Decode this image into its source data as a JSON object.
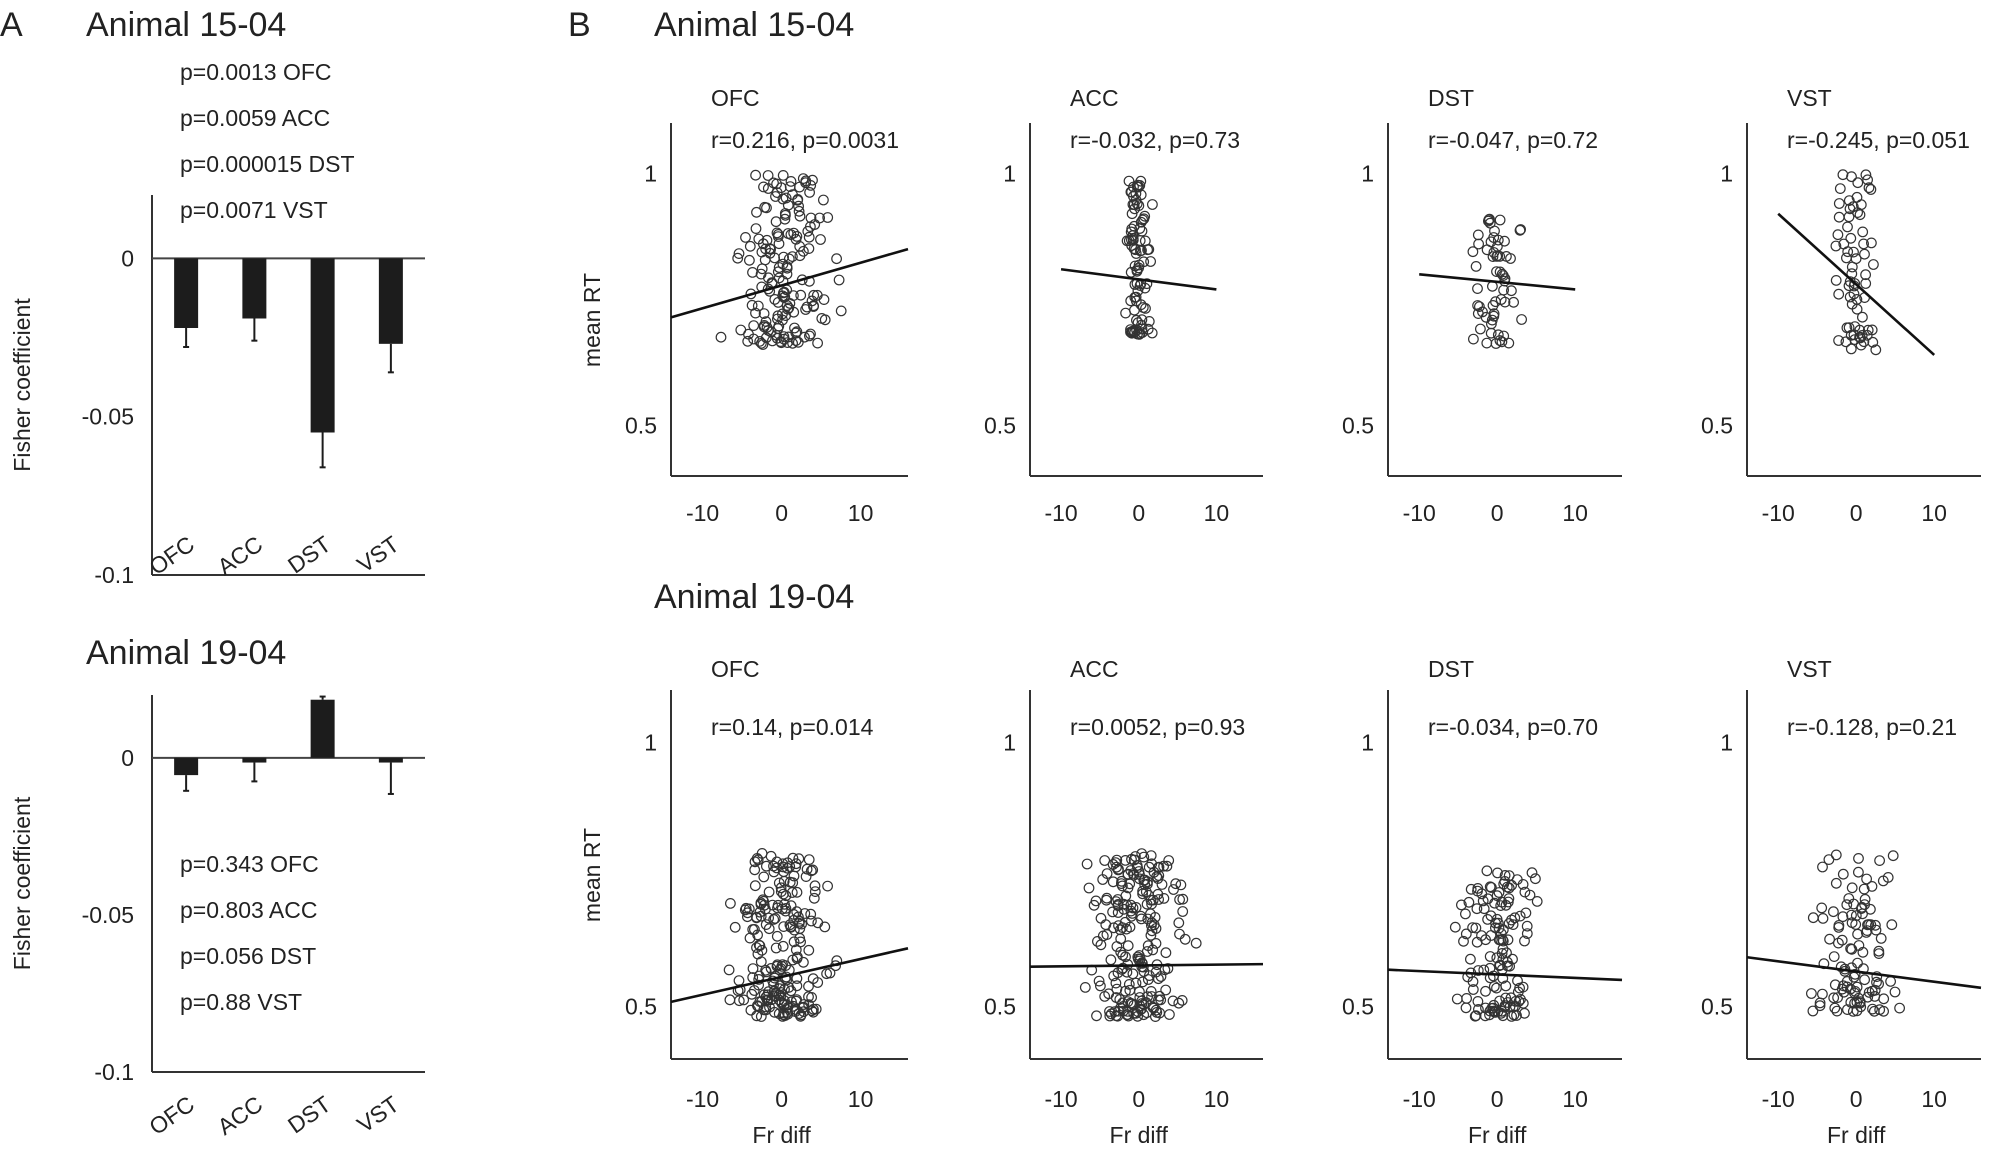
{
  "panel_a_label": "A",
  "panel_b_label": "B",
  "chart_data": [
    {
      "id": "a1",
      "type": "bar",
      "title": "Animal 15-04",
      "ylabel": "Fisher coefficient",
      "categories": [
        "OFC",
        "ACC",
        "DST",
        "VST"
      ],
      "values": [
        -0.022,
        -0.019,
        -0.055,
        -0.027
      ],
      "errors": [
        0.006,
        0.007,
        0.011,
        0.009
      ],
      "ylim": [
        -0.1,
        0.02
      ],
      "yticks": [
        0,
        -0.05,
        -0.1
      ],
      "ytick_labels": [
        "0",
        "-0.05",
        "-0.1"
      ],
      "pvalues": [
        "p=0.0013 OFC",
        "p=0.0059 ACC",
        "p=0.000015  DST",
        "p=0.0071 VST"
      ]
    },
    {
      "id": "a2",
      "type": "bar",
      "title": "Animal 19-04",
      "ylabel": "Fisher coefficient",
      "categories": [
        "OFC",
        "ACC",
        "DST",
        "VST"
      ],
      "values": [
        -0.0055,
        -0.0015,
        0.0185,
        -0.0015
      ],
      "errors": [
        0.005,
        0.006,
        0.001,
        0.01
      ],
      "ylim": [
        -0.1,
        0.02
      ],
      "yticks": [
        0,
        -0.05,
        -0.1
      ],
      "ytick_labels": [
        "0",
        "-0.05",
        "-0.1"
      ],
      "pvalues": [
        "p=0.343 OFC",
        "p=0.803 ACC",
        "p=0.056 DST",
        "p=0.88    VST"
      ]
    },
    {
      "id": "b1",
      "type": "scatter",
      "title": "Animal 15-04",
      "ylabel": "mean RT",
      "xlabel": "",
      "xlim": [
        -14,
        16
      ],
      "ylim": [
        0.4,
        1.1
      ],
      "xticks": [
        -10,
        0,
        10
      ],
      "yticks": [
        0.5,
        1
      ],
      "ytick_labels": [
        "0.5",
        "1"
      ],
      "panels": [
        {
          "name": "OFC",
          "stat": "r=0.216, p=0.0031",
          "fit": {
            "x": [
              -15,
              16
            ],
            "y": [
              0.71,
              0.85
            ]
          },
          "spread": {
            "x_sd": 3.5,
            "y_min": 0.66,
            "y_max": 1.0,
            "n": 170,
            "seed": 11
          }
        },
        {
          "name": "ACC",
          "stat": "r=-0.032, p=0.73",
          "fit": {
            "x": [
              -10,
              10
            ],
            "y": [
              0.81,
              0.77
            ]
          },
          "spread": {
            "x_sd": 0.9,
            "y_min": 0.68,
            "y_max": 1.0,
            "n": 90,
            "seed": 23
          }
        },
        {
          "name": "DST",
          "stat": "r=-0.047, p=0.72",
          "fit": {
            "x": [
              -10,
              10
            ],
            "y": [
              0.8,
              0.77
            ]
          },
          "spread": {
            "x_sd": 1.8,
            "y_min": 0.66,
            "y_max": 0.91,
            "n": 60,
            "seed": 37
          }
        },
        {
          "name": "VST",
          "stat": "r=-0.245, p=0.051",
          "fit": {
            "x": [
              -10,
              10
            ],
            "y": [
              0.92,
              0.64
            ]
          },
          "spread": {
            "x_sd": 1.5,
            "y_min": 0.65,
            "y_max": 1.0,
            "n": 70,
            "seed": 41
          }
        }
      ]
    },
    {
      "id": "b2",
      "type": "scatter",
      "title": "Animal 19-04",
      "ylabel": "mean RT",
      "xlabel": "Fr diff",
      "xlim": [
        -14,
        16
      ],
      "ylim": [
        0.4,
        1.1
      ],
      "xticks": [
        -10,
        0,
        10
      ],
      "yticks": [
        0.5,
        1
      ],
      "ytick_labels": [
        "0.5",
        "1"
      ],
      "panels": [
        {
          "name": "OFC",
          "stat": "r=0.14, p=0.014",
          "fit": {
            "x": [
              -15,
              16
            ],
            "y": [
              0.505,
              0.61
            ]
          },
          "spread": {
            "x_sd": 3.5,
            "y_min": 0.48,
            "y_max": 0.79,
            "n": 220,
            "seed": 53
          }
        },
        {
          "name": "ACC",
          "stat": "r=0.0052, p=0.93",
          "fit": {
            "x": [
              -15,
              16
            ],
            "y": [
              0.575,
              0.58
            ]
          },
          "spread": {
            "x_sd": 3.5,
            "y_min": 0.48,
            "y_max": 0.79,
            "n": 220,
            "seed": 67
          }
        },
        {
          "name": "DST",
          "stat": "r=-0.034, p=0.70",
          "fit": {
            "x": [
              -15,
              16
            ],
            "y": [
              0.57,
              0.55
            ]
          },
          "spread": {
            "x_sd": 2.8,
            "y_min": 0.48,
            "y_max": 0.76,
            "n": 140,
            "seed": 71
          }
        },
        {
          "name": "VST",
          "stat": "r=-0.128, p=0.21",
          "fit": {
            "x": [
              -15,
              16
            ],
            "y": [
              0.595,
              0.535
            ]
          },
          "spread": {
            "x_sd": 3.0,
            "y_min": 0.49,
            "y_max": 0.79,
            "n": 110,
            "seed": 83
          }
        }
      ]
    }
  ]
}
